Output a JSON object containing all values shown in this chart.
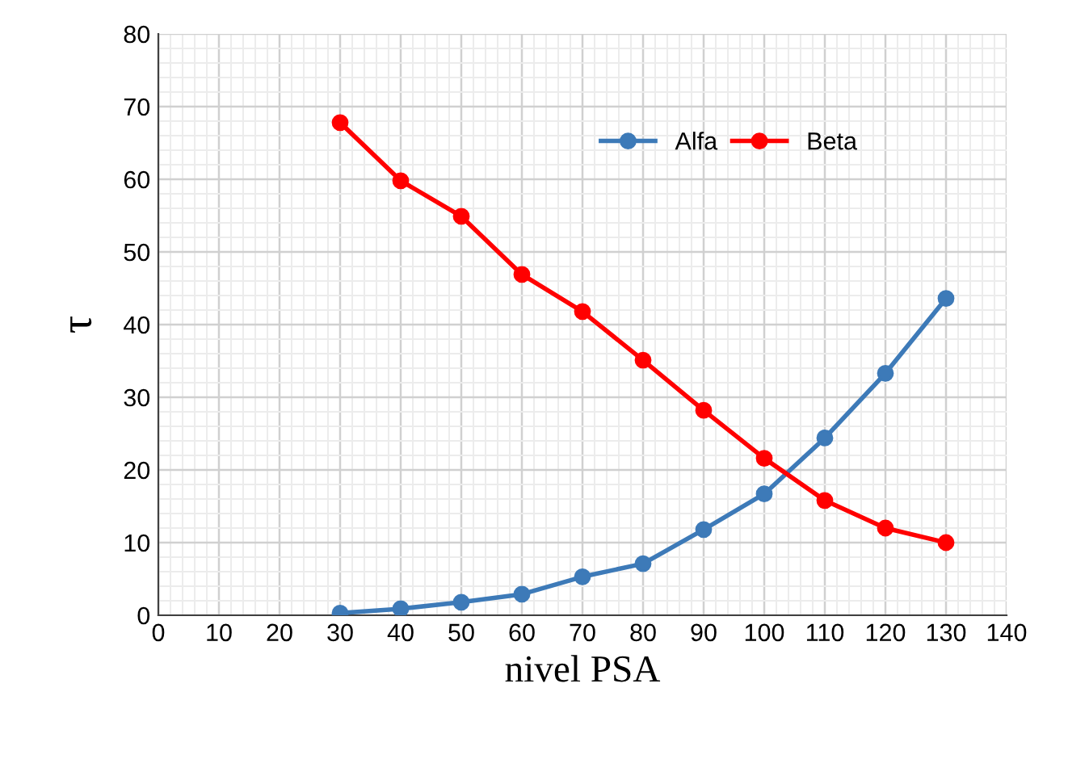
{
  "chart_data": {
    "type": "line",
    "xlabel": "nivel PSA",
    "ylabel": "τ",
    "series": [
      {
        "name": "Alfa",
        "color": "#3d7ab8",
        "x": [
          30,
          40,
          50,
          60,
          70,
          80,
          90,
          100,
          110,
          120,
          130
        ],
        "values": [
          0.3,
          0.9,
          1.8,
          2.9,
          5.3,
          7.1,
          11.8,
          16.7,
          24.4,
          33.3,
          43.6
        ]
      },
      {
        "name": "Beta",
        "color": "#ff0000",
        "x": [
          30,
          40,
          50,
          60,
          70,
          80,
          90,
          100,
          110,
          120,
          130
        ],
        "values": [
          67.8,
          59.8,
          54.9,
          46.9,
          41.8,
          35.1,
          28.2,
          21.6,
          15.8,
          12,
          10
        ]
      }
    ],
    "xlim": [
      0,
      140
    ],
    "xticks": [
      0,
      10,
      20,
      30,
      40,
      50,
      60,
      70,
      80,
      90,
      100,
      110,
      120,
      130,
      140
    ],
    "ylim": [
      0,
      80
    ],
    "yticks": [
      0,
      10,
      20,
      30,
      40,
      50,
      60,
      70,
      80
    ],
    "grid": true,
    "legend": "top right",
    "marker": "circle",
    "line_style": "solid"
  }
}
